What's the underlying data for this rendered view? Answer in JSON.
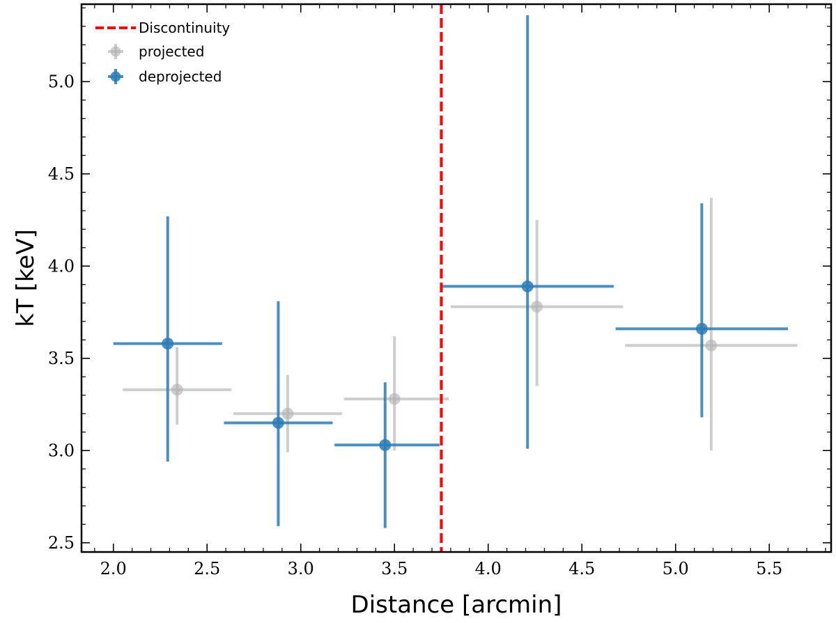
{
  "chart_data": {
    "type": "scatter",
    "xlabel": "Distance [arcmin]",
    "ylabel": "kT [keV]",
    "xlim": [
      1.83,
      5.83
    ],
    "ylim": [
      2.45,
      5.42
    ],
    "xticks": [
      2.0,
      2.5,
      3.0,
      3.5,
      4.0,
      4.5,
      5.0,
      5.5
    ],
    "yticks": [
      2.5,
      3.0,
      3.5,
      4.0,
      4.5,
      5.0
    ],
    "xtick_labels": [
      "2.0",
      "2.5",
      "3.0",
      "3.5",
      "4.0",
      "4.5",
      "5.0",
      "5.5"
    ],
    "ytick_labels": [
      "2.5",
      "3.0",
      "3.5",
      "4.0",
      "4.5",
      "5.0"
    ],
    "discontinuity": {
      "label": "Discontinuity",
      "x": 3.75,
      "color": "#ff0000"
    },
    "legend": {
      "placement": "top-left",
      "entries": [
        "Discontinuity",
        "projected",
        "deprojected"
      ]
    },
    "series": [
      {
        "name": "projected",
        "color": "#b3b3b3",
        "points": [
          {
            "x": 2.34,
            "xlo": 2.05,
            "xhi": 2.63,
            "y": 3.33,
            "ylo": 3.14,
            "yhi": 3.56
          },
          {
            "x": 2.93,
            "xlo": 2.64,
            "xhi": 3.22,
            "y": 3.2,
            "ylo": 2.99,
            "yhi": 3.41
          },
          {
            "x": 3.5,
            "xlo": 3.23,
            "xhi": 3.79,
            "y": 3.28,
            "ylo": 3.0,
            "yhi": 3.62
          },
          {
            "x": 4.26,
            "xlo": 3.8,
            "xhi": 4.72,
            "y": 3.78,
            "ylo": 3.35,
            "yhi": 4.25
          },
          {
            "x": 5.19,
            "xlo": 4.73,
            "xhi": 5.65,
            "y": 3.57,
            "ylo": 3.0,
            "yhi": 4.37
          }
        ]
      },
      {
        "name": "deprojected",
        "color": "#2c7bb6",
        "points": [
          {
            "x": 2.29,
            "xlo": 2.0,
            "xhi": 2.58,
            "y": 3.58,
            "ylo": 2.94,
            "yhi": 4.27
          },
          {
            "x": 2.88,
            "xlo": 2.59,
            "xhi": 3.17,
            "y": 3.15,
            "ylo": 2.59,
            "yhi": 3.81
          },
          {
            "x": 3.45,
            "xlo": 3.18,
            "xhi": 3.74,
            "y": 3.03,
            "ylo": 2.58,
            "yhi": 3.37
          },
          {
            "x": 4.21,
            "xlo": 3.75,
            "xhi": 4.67,
            "y": 3.89,
            "ylo": 3.01,
            "yhi": 5.36
          },
          {
            "x": 5.14,
            "xlo": 4.68,
            "xhi": 5.6,
            "y": 3.66,
            "ylo": 3.18,
            "yhi": 4.34
          }
        ]
      }
    ]
  }
}
